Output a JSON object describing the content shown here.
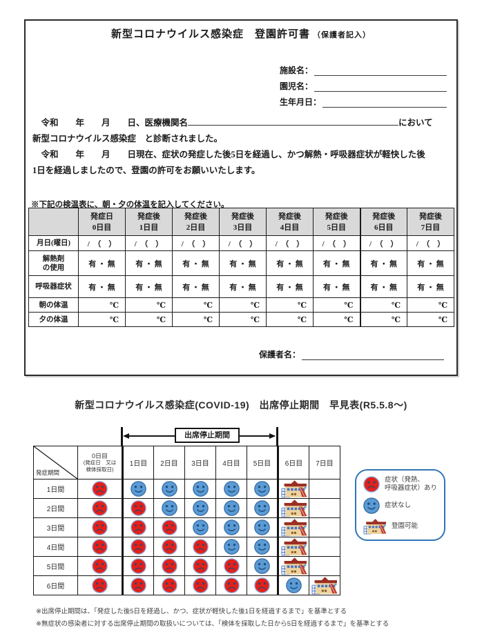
{
  "form": {
    "title": "新型コロナウイルス感染症　登園許可書",
    "title_note": "（保護者記入）",
    "fields": [
      {
        "label": "施設名："
      },
      {
        "label": "園児名："
      },
      {
        "label": "生年月日："
      }
    ],
    "body": {
      "p1_prefix": "　令和　　年　　月　　日、医療機関名",
      "p1_suffix": "において",
      "p1_line2": "新型コロナウイルス感染症　と診断されました。",
      "p2_line1": "　令和　　年　　月　　日現在、症状の発症した後5日を経過し、かつ解熱・呼吸器症状が軽快した後",
      "p2_line2": "1日を経過しましたので、登園の許可をお願いいたします。"
    },
    "note": "※下記の検温表に、朝・夕の体温を記入してください。",
    "table": {
      "headers": [
        {
          "top": "発症日",
          "bottom": "0日目"
        },
        {
          "top": "発症後",
          "bottom": "1日目"
        },
        {
          "top": "発症後",
          "bottom": "2日目"
        },
        {
          "top": "発症後",
          "bottom": "3日目"
        },
        {
          "top": "発症後",
          "bottom": "4日目"
        },
        {
          "top": "発症後",
          "bottom": "5日目"
        },
        {
          "top": "発症後",
          "bottom": "6日目"
        },
        {
          "top": "発症後",
          "bottom": "7日目"
        }
      ],
      "rows": [
        {
          "label": "月日(曜日)",
          "label2": "",
          "cell": "/　（　）",
          "align": "center"
        },
        {
          "label": "解熱剤",
          "label2": "の使用",
          "cell": "有 ・ 無",
          "align": "center"
        },
        {
          "label": "呼吸器症状",
          "label2": "",
          "cell": "有 ・ 無",
          "align": "center"
        },
        {
          "label": "朝の体温",
          "label2": "",
          "cell": "℃",
          "align": "right"
        },
        {
          "label": "夕の体温",
          "label2": "",
          "cell": "℃",
          "align": "right"
        }
      ]
    },
    "guardian_label": "保護者名："
  },
  "chart": {
    "title": "新型コロナウイルス感染症(COVID-19)　出席停止期間　早見表(R5.5.8～)",
    "arrow_label": "出席停止期間",
    "corner_label": "発症期間",
    "day_headers": [
      [
        "0日目",
        "(発症日　又は",
        "検体採取日)"
      ],
      [
        "1日目"
      ],
      [
        "2日目"
      ],
      [
        "3日目"
      ],
      [
        "4日目"
      ],
      [
        "5日目"
      ],
      [
        "6日目"
      ],
      [
        "7日目"
      ]
    ],
    "rows": [
      {
        "label": "1日間",
        "cells": [
          "sick",
          "well",
          "well",
          "well",
          "well",
          "well",
          "school",
          ""
        ]
      },
      {
        "label": "2日間",
        "cells": [
          "sick",
          "sick",
          "well",
          "well",
          "well",
          "well",
          "school",
          ""
        ]
      },
      {
        "label": "3日間",
        "cells": [
          "sick",
          "sick",
          "sick",
          "well",
          "well",
          "well",
          "school",
          ""
        ]
      },
      {
        "label": "4日間",
        "cells": [
          "sick",
          "sick",
          "sick",
          "sick",
          "well",
          "well",
          "school",
          ""
        ]
      },
      {
        "label": "5日間",
        "cells": [
          "sick",
          "sick",
          "sick",
          "sick",
          "sick",
          "well",
          "school",
          ""
        ]
      },
      {
        "label": "6日間",
        "cells": [
          "sick",
          "sick",
          "sick",
          "sick",
          "sick",
          "sick",
          "well",
          "school"
        ]
      }
    ],
    "legend": [
      {
        "icon": "sick-face",
        "lines": [
          "症状（発熱、",
          "呼吸器症状）あり"
        ]
      },
      {
        "icon": "well-face",
        "lines": [
          "症状なし"
        ]
      },
      {
        "icon": "school",
        "lines": [
          "登園可能"
        ]
      }
    ],
    "footnotes": [
      "※出席停止期間は、「発症した後5日を経過し、かつ、症状が軽快した後1日を経過するまで」を基準とする",
      "※無症状の感染者に対する出席停止期間の取扱いについては、「検体を採取した日から5日を経過するまで」を基準とする"
    ]
  },
  "colors": {
    "sick": "#e3201b",
    "sick_stroke": "#8faadc",
    "sick_feature": "#44425e",
    "well": "#5b9bd5",
    "well_stroke": "#3a6ea5",
    "well_feature": "#1f4e79",
    "header_bg": "#d9d9d9",
    "legend_border": "#2e75b6"
  }
}
